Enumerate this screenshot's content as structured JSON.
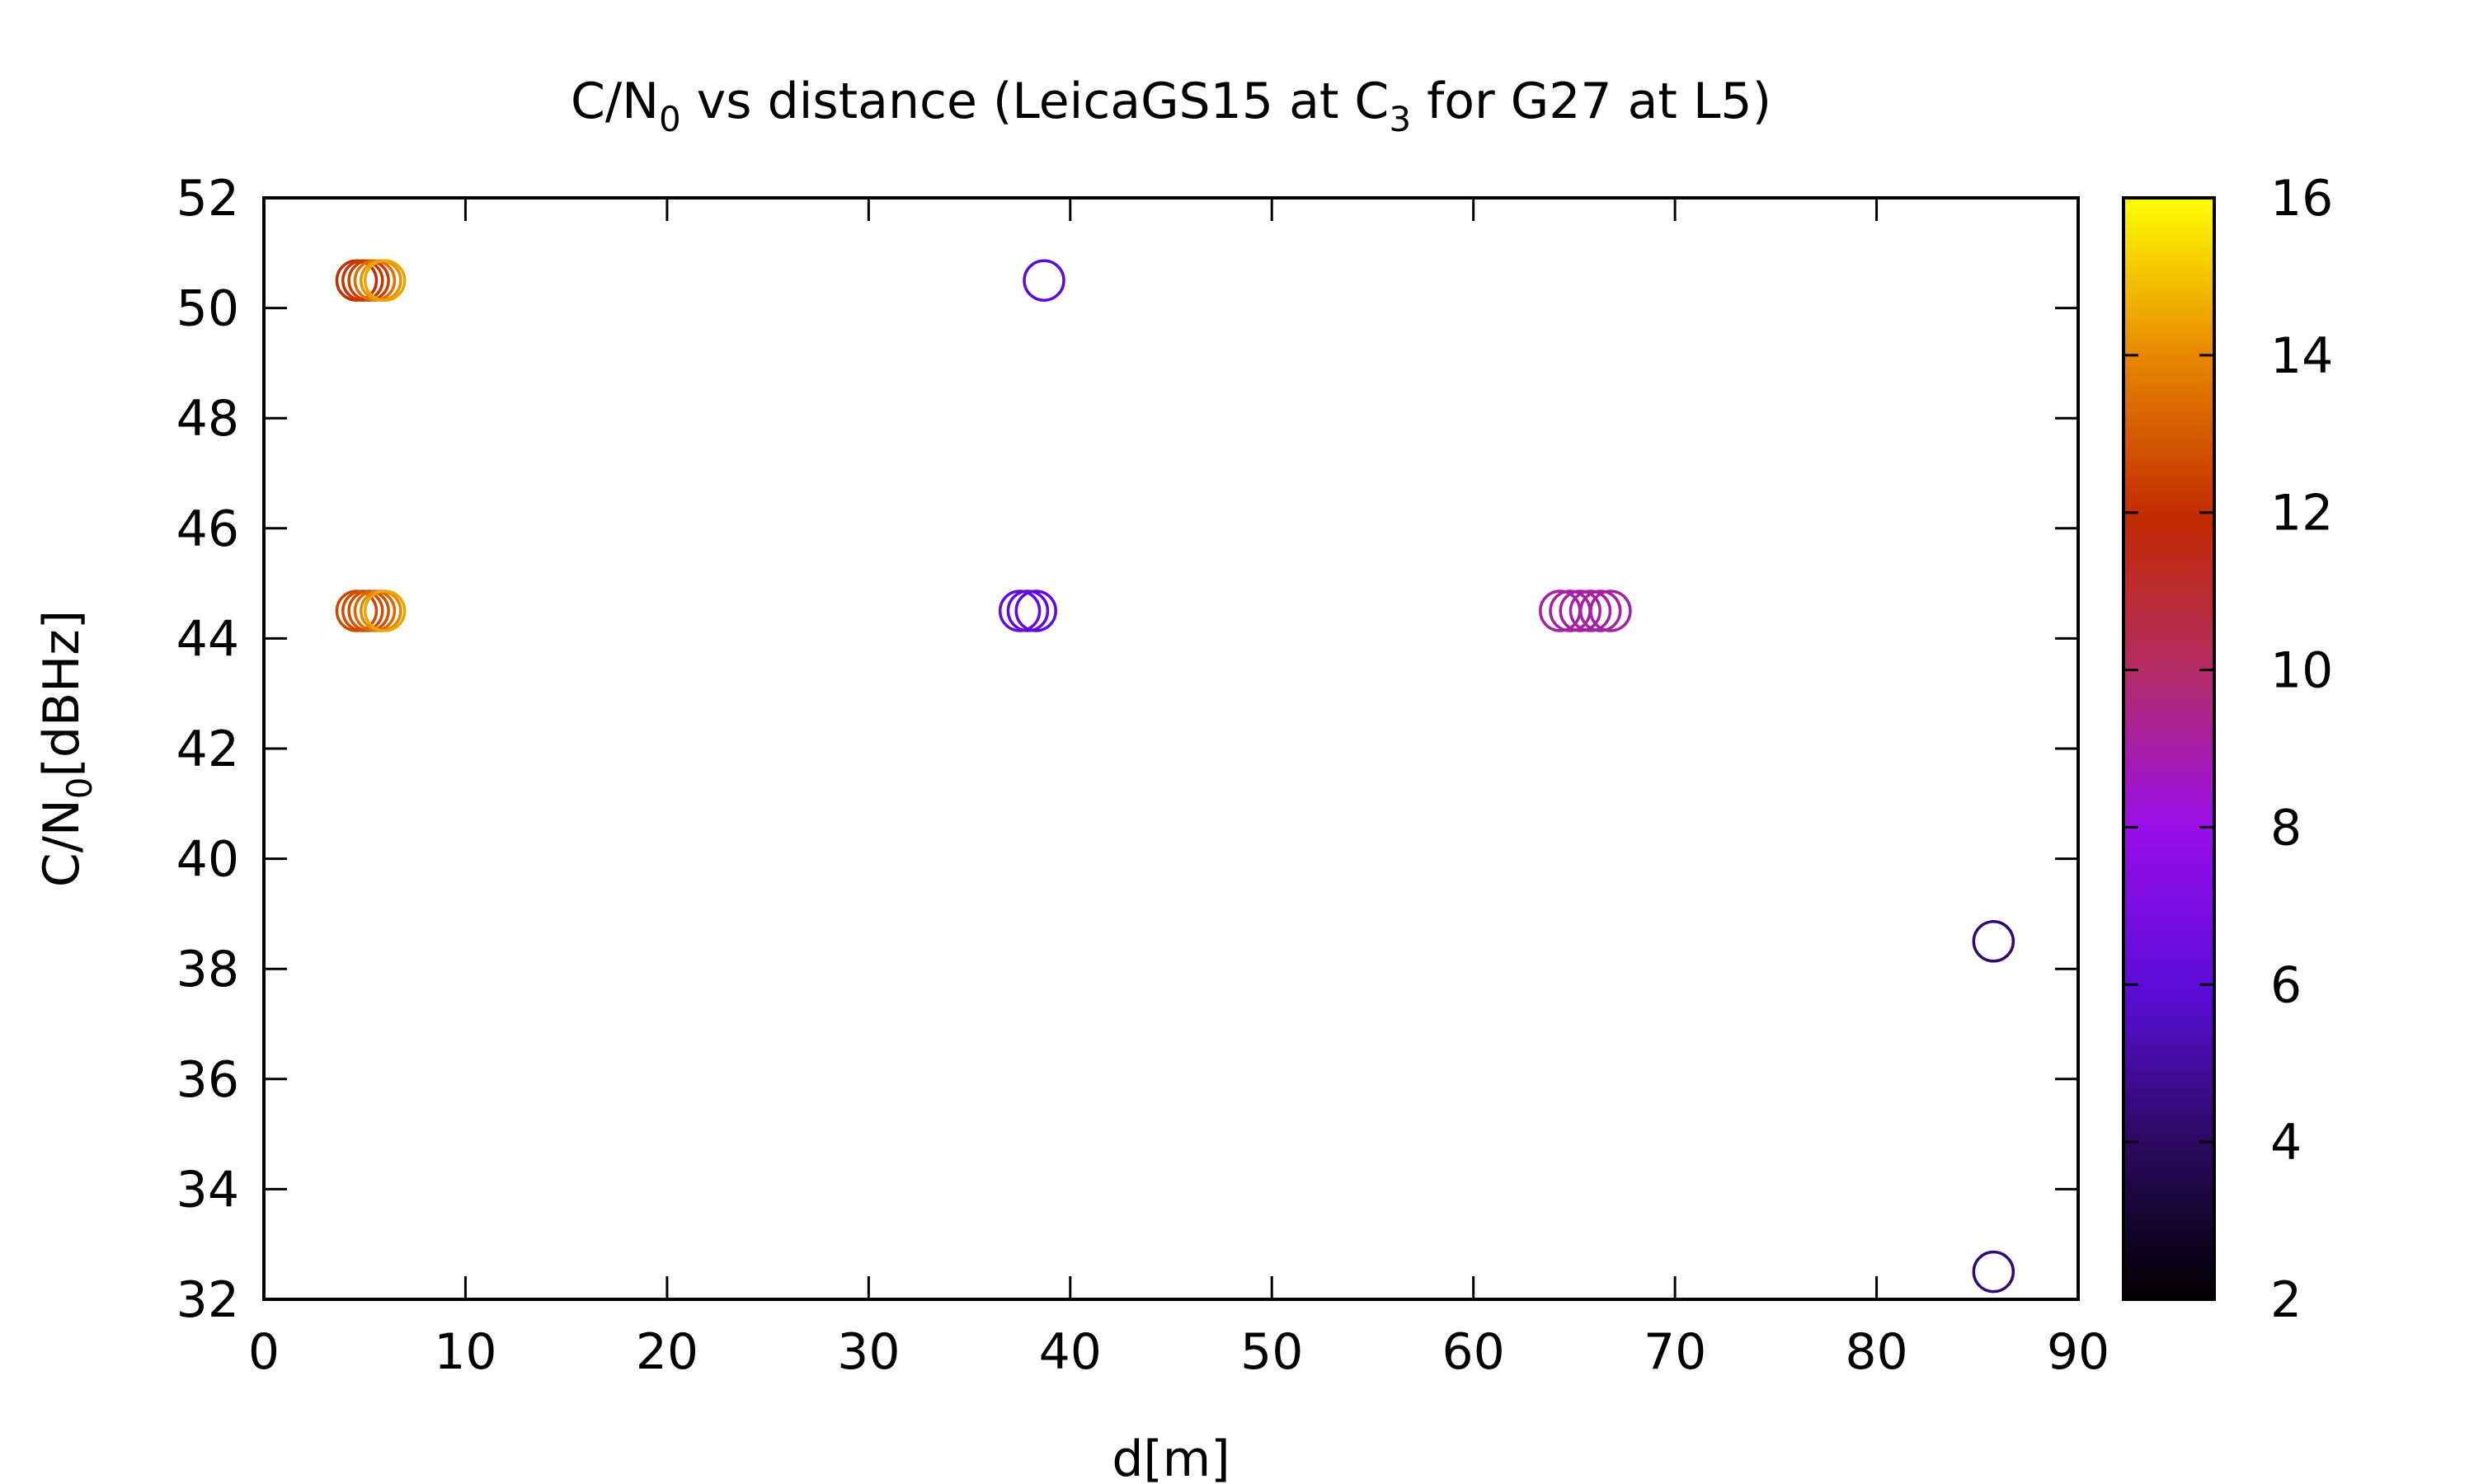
{
  "chart_data": {
    "type": "scatter",
    "title": {
      "base": "C/N",
      "sub1": "0",
      "mid": " vs distance (LeicaGS15 at C",
      "sub2": "3",
      "end": " for G27 at L5)"
    },
    "xlabel": "d[m]",
    "ylabel": {
      "base": "C/N",
      "sub": "0",
      "end": "[dBHz]"
    },
    "xlim": [
      0,
      90
    ],
    "ylim": [
      32,
      52
    ],
    "x_ticks": [
      0,
      10,
      20,
      30,
      40,
      50,
      60,
      70,
      80,
      90
    ],
    "y_ticks": [
      32,
      34,
      36,
      38,
      40,
      42,
      44,
      46,
      48,
      50,
      52
    ],
    "grid": false,
    "marker": "open-circle",
    "colorbar": {
      "range": [
        2,
        16
      ],
      "ticks": [
        2,
        4,
        6,
        8,
        10,
        12,
        14,
        16
      ],
      "palette": "black-purple-red-orange-yellow"
    },
    "points": [
      {
        "x": 4.6,
        "y": 50.5,
        "c": 12.0
      },
      {
        "x": 4.9,
        "y": 50.5,
        "c": 12.2
      },
      {
        "x": 5.2,
        "y": 50.5,
        "c": 12.4
      },
      {
        "x": 5.5,
        "y": 50.5,
        "c": 13.5
      },
      {
        "x": 5.8,
        "y": 50.5,
        "c": 14.2
      },
      {
        "x": 6.0,
        "y": 50.5,
        "c": 14.5
      },
      {
        "x": 4.6,
        "y": 44.5,
        "c": 12.6
      },
      {
        "x": 4.9,
        "y": 44.5,
        "c": 12.7
      },
      {
        "x": 5.2,
        "y": 44.5,
        "c": 12.8
      },
      {
        "x": 5.5,
        "y": 44.5,
        "c": 13.3
      },
      {
        "x": 5.8,
        "y": 44.5,
        "c": 14.0
      },
      {
        "x": 6.0,
        "y": 44.5,
        "c": 14.5
      },
      {
        "x": 38.7,
        "y": 50.5,
        "c": 6.0
      },
      {
        "x": 37.5,
        "y": 44.5,
        "c": 6.3
      },
      {
        "x": 37.9,
        "y": 44.5,
        "c": 6.2
      },
      {
        "x": 38.3,
        "y": 44.5,
        "c": 6.1
      },
      {
        "x": 64.3,
        "y": 44.5,
        "c": 9.0
      },
      {
        "x": 64.8,
        "y": 44.5,
        "c": 9.0
      },
      {
        "x": 65.3,
        "y": 44.5,
        "c": 9.1
      },
      {
        "x": 65.8,
        "y": 44.5,
        "c": 9.0
      },
      {
        "x": 66.3,
        "y": 44.5,
        "c": 9.1
      },
      {
        "x": 66.8,
        "y": 44.5,
        "c": 9.0
      },
      {
        "x": 85.8,
        "y": 38.5,
        "c": 4.2
      },
      {
        "x": 85.8,
        "y": 32.5,
        "c": 4.3
      }
    ]
  }
}
